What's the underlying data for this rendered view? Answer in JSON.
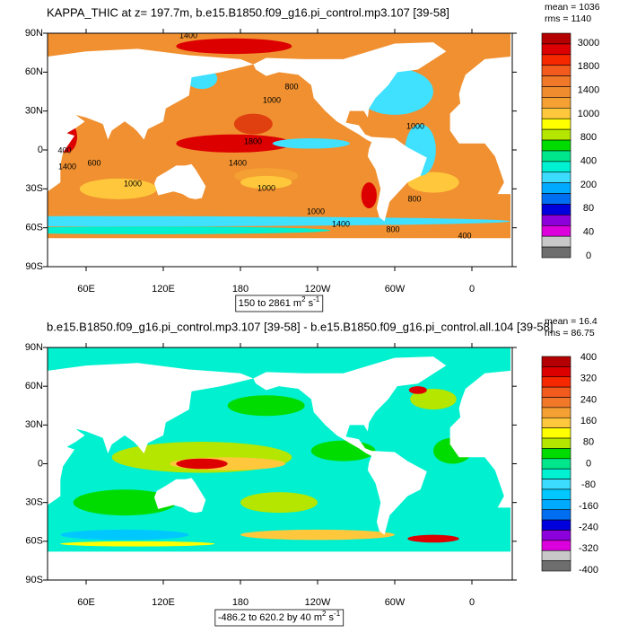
{
  "panels": [
    {
      "title": "KAPPA_THIC at z= 197.7m, b.e15.B1850.f09_g16.pi_control.mp3.107 [39-58]",
      "stats": [
        "mean = 1036",
        "rms = 1140"
      ],
      "lat_labels": [
        "90N",
        "60N",
        "30N",
        "0",
        "30S",
        "60S",
        "90S"
      ],
      "lon_labels": [
        "60E",
        "120E",
        "180",
        "120W",
        "60W",
        "0"
      ],
      "contour_labels": [
        "1400",
        "1000",
        "800",
        "1800",
        "1400",
        "1000",
        "1000",
        "1400",
        "400",
        "1400",
        "600",
        "1000",
        "1000",
        "800",
        "400",
        "800"
      ],
      "colorbar": {
        "labels": [
          "3000",
          "1800",
          "1400",
          "1000",
          "800",
          "400",
          "200",
          "80",
          "40",
          "0"
        ],
        "colors": [
          "#b40000",
          "#dc0000",
          "#f52800",
          "#f25a1e",
          "#f07828",
          "#f08c2d",
          "#f5a032",
          "#ffc83c",
          "#ffff00",
          "#b4e600",
          "#00dc00",
          "#00e68c",
          "#00f0d2",
          "#3cdcff",
          "#00aaff",
          "#006ef0",
          "#0000dc",
          "#8c00dc",
          "#dc00dc",
          "#c8c8c8",
          "#6e6e6e"
        ]
      },
      "range": {
        "text": "150 to 2861 m",
        "sup1": "2",
        "mid": " s",
        "sup2": "-1"
      }
    },
    {
      "title": "b.e15.B1850.f09_g16.pi_control.mp3.107 [39-58] - b.e15.B1850.f09_g16.pi_control.all.104 [39-58]",
      "stats": [
        "mean = 16.4",
        "rms = 86.75"
      ],
      "lat_labels": [
        "90N",
        "60N",
        "30N",
        "0",
        "30S",
        "60S",
        "90S"
      ],
      "lon_labels": [
        "60E",
        "120E",
        "180",
        "120W",
        "60W",
        "0"
      ],
      "contour_labels": [],
      "colorbar": {
        "labels": [
          "400",
          "320",
          "240",
          "160",
          "80",
          "0",
          "-80",
          "-160",
          "-240",
          "-320",
          "-400"
        ],
        "colors": [
          "#b40000",
          "#dc0000",
          "#f52800",
          "#f25a1e",
          "#f07828",
          "#f5a032",
          "#ffc83c",
          "#ffff00",
          "#b4e600",
          "#00dc00",
          "#00e68c",
          "#00f0d2",
          "#3cdcff",
          "#00c8ff",
          "#00aaff",
          "#006ef0",
          "#0000dc",
          "#8c00dc",
          "#dc00dc",
          "#c8c8c8",
          "#6e6e6e"
        ]
      },
      "range": {
        "text": "-486.2 to 620.2 by 40 m",
        "sup1": "2",
        "mid": " s",
        "sup2": "-1"
      }
    }
  ]
}
